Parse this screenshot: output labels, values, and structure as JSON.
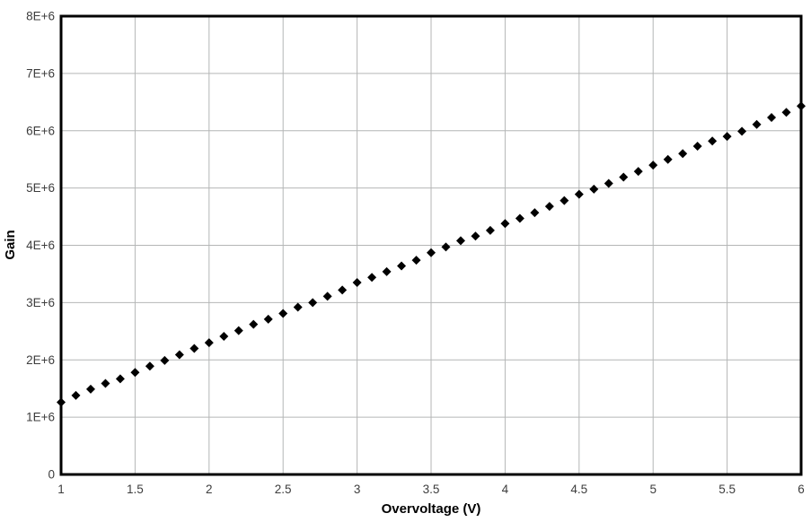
{
  "chart_data": {
    "type": "scatter",
    "title": "",
    "xlabel": "Overvoltage (V)",
    "ylabel": "Gain",
    "xlim": [
      1,
      6
    ],
    "ylim": [
      0,
      8000000
    ],
    "x_ticks": [
      1,
      1.5,
      2,
      2.5,
      3,
      3.5,
      4,
      4.5,
      5,
      5.5,
      6
    ],
    "x_tick_labels": [
      "1",
      "1.5",
      "2",
      "2.5",
      "3",
      "3.5",
      "4",
      "4.5",
      "5",
      "5.5",
      "6"
    ],
    "y_ticks": [
      0,
      1000000,
      2000000,
      3000000,
      4000000,
      5000000,
      6000000,
      7000000,
      8000000
    ],
    "y_tick_labels": [
      "0",
      "1E+6",
      "2E+6",
      "3E+6",
      "4E+6",
      "5E+6",
      "6E+6",
      "7E+6",
      "8E+6"
    ],
    "grid": true,
    "legend_position": "none",
    "marker": "diamond",
    "series": [
      {
        "name": "Gain",
        "x": [
          1.0,
          1.1,
          1.2,
          1.3,
          1.4,
          1.5,
          1.6,
          1.7,
          1.8,
          1.9,
          2.0,
          2.1,
          2.2,
          2.3,
          2.4,
          2.5,
          2.6,
          2.7,
          2.8,
          2.9,
          3.0,
          3.1,
          3.2,
          3.3,
          3.4,
          3.5,
          3.6,
          3.7,
          3.8,
          3.9,
          4.0,
          4.1,
          4.2,
          4.3,
          4.4,
          4.5,
          4.6,
          4.7,
          4.8,
          4.9,
          5.0,
          5.1,
          5.2,
          5.3,
          5.4,
          5.5,
          5.6,
          5.7,
          5.8,
          5.9,
          6.0
        ],
        "y": [
          1260000,
          1380000,
          1490000,
          1590000,
          1670000,
          1780000,
          1890000,
          1990000,
          2090000,
          2200000,
          2300000,
          2410000,
          2510000,
          2620000,
          2710000,
          2810000,
          2920000,
          3000000,
          3110000,
          3220000,
          3350000,
          3440000,
          3540000,
          3640000,
          3740000,
          3870000,
          3970000,
          4080000,
          4160000,
          4260000,
          4380000,
          4470000,
          4570000,
          4680000,
          4780000,
          4890000,
          4980000,
          5080000,
          5190000,
          5290000,
          5400000,
          5500000,
          5600000,
          5730000,
          5820000,
          5900000,
          5990000,
          6110000,
          6230000,
          6320000,
          6430000
        ]
      }
    ]
  },
  "colors": {
    "background": "#ffffff",
    "axis": "#000000",
    "grid": "#b4b6b6",
    "tick_label": "#3d3d3d",
    "marker": "#000000"
  }
}
